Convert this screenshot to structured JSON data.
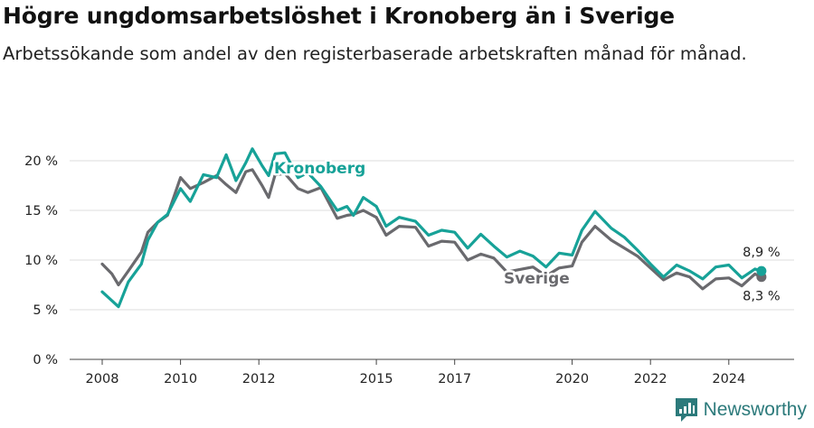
{
  "title": "Högre ungdomsarbetslöshet i Kronoberg än i Sverige",
  "subtitle": "Arbetssökande som andel av den registerbaserade arbetskraften månad för månad.",
  "brand": {
    "name": "Newsworthy",
    "logo_icon": "bar-chart-icon",
    "color": "#2c7a7b"
  },
  "chart_data": {
    "type": "line",
    "title": "Högre ungdomsarbetslöshet i Kronoberg än i Sverige",
    "subtitle": "Arbetssökande som andel av den registerbaserade arbetskraften månad för månad.",
    "xlabel": "",
    "ylabel": "",
    "x_range": [
      "2008-01",
      "2025-01"
    ],
    "ylim": [
      0,
      22
    ],
    "y_ticks": [
      0,
      5,
      10,
      15,
      20
    ],
    "y_tick_labels": [
      "0 %",
      "5 %",
      "10 %",
      "15 %",
      "20 %"
    ],
    "x_tick_labels": [
      "2008",
      "2010",
      "2012",
      "2015",
      "2017",
      "2020",
      "2022",
      "2024"
    ],
    "x_ticks": [
      "2008-01",
      "2010-01",
      "2012-01",
      "2015-01",
      "2017-01",
      "2020-01",
      "2022-01",
      "2024-01"
    ],
    "grid": "horizontal",
    "series": [
      {
        "name": "Kronoberg",
        "color": "#17a298",
        "end_label": "8,9 %",
        "points": [
          [
            "2008-01",
            6.8
          ],
          [
            "2008-04",
            5.9
          ],
          [
            "2008-06",
            5.3
          ],
          [
            "2008-09",
            7.8
          ],
          [
            "2009-01",
            9.6
          ],
          [
            "2009-03",
            12.0
          ],
          [
            "2009-06",
            13.8
          ],
          [
            "2009-09",
            14.6
          ],
          [
            "2010-01",
            17.2
          ],
          [
            "2010-04",
            15.9
          ],
          [
            "2010-08",
            18.6
          ],
          [
            "2010-12",
            18.3
          ],
          [
            "2011-03",
            20.6
          ],
          [
            "2011-06",
            18.0
          ],
          [
            "2011-09",
            19.8
          ],
          [
            "2011-11",
            21.2
          ],
          [
            "2012-02",
            19.5
          ],
          [
            "2012-04",
            18.5
          ],
          [
            "2012-06",
            20.7
          ],
          [
            "2012-09",
            20.8
          ],
          [
            "2013-01",
            18.3
          ],
          [
            "2013-04",
            18.8
          ],
          [
            "2013-08",
            17.4
          ],
          [
            "2014-01",
            15.0
          ],
          [
            "2014-04",
            15.4
          ],
          [
            "2014-06",
            14.5
          ],
          [
            "2014-09",
            16.3
          ],
          [
            "2015-01",
            15.4
          ],
          [
            "2015-04",
            13.4
          ],
          [
            "2015-08",
            14.3
          ],
          [
            "2016-01",
            13.9
          ],
          [
            "2016-05",
            12.5
          ],
          [
            "2016-09",
            13.0
          ],
          [
            "2017-01",
            12.8
          ],
          [
            "2017-05",
            11.2
          ],
          [
            "2017-09",
            12.6
          ],
          [
            "2018-01",
            11.4
          ],
          [
            "2018-05",
            10.3
          ],
          [
            "2018-09",
            10.9
          ],
          [
            "2019-01",
            10.4
          ],
          [
            "2019-05",
            9.3
          ],
          [
            "2019-09",
            10.7
          ],
          [
            "2020-01",
            10.5
          ],
          [
            "2020-04",
            13.0
          ],
          [
            "2020-08",
            14.9
          ],
          [
            "2021-01",
            13.2
          ],
          [
            "2021-05",
            12.3
          ],
          [
            "2021-09",
            11.0
          ],
          [
            "2022-01",
            9.6
          ],
          [
            "2022-05",
            8.3
          ],
          [
            "2022-09",
            9.5
          ],
          [
            "2023-01",
            8.9
          ],
          [
            "2023-05",
            8.1
          ],
          [
            "2023-09",
            9.3
          ],
          [
            "2024-01",
            9.5
          ],
          [
            "2024-05",
            8.2
          ],
          [
            "2024-09",
            9.1
          ],
          [
            "2024-11",
            8.9
          ]
        ]
      },
      {
        "name": "Sverige",
        "color": "#6a6a6e",
        "end_label": "8,3 %",
        "points": [
          [
            "2008-01",
            9.6
          ],
          [
            "2008-04",
            8.6
          ],
          [
            "2008-06",
            7.5
          ],
          [
            "2008-09",
            8.9
          ],
          [
            "2009-01",
            10.8
          ],
          [
            "2009-03",
            12.8
          ],
          [
            "2009-06",
            13.8
          ],
          [
            "2009-09",
            14.5
          ],
          [
            "2010-01",
            18.3
          ],
          [
            "2010-04",
            17.2
          ],
          [
            "2010-08",
            17.8
          ],
          [
            "2010-12",
            18.5
          ],
          [
            "2011-03",
            17.6
          ],
          [
            "2011-06",
            16.8
          ],
          [
            "2011-09",
            18.9
          ],
          [
            "2011-11",
            19.1
          ],
          [
            "2012-02",
            17.5
          ],
          [
            "2012-04",
            16.3
          ],
          [
            "2012-06",
            18.6
          ],
          [
            "2012-09",
            18.7
          ],
          [
            "2013-01",
            17.2
          ],
          [
            "2013-04",
            16.8
          ],
          [
            "2013-08",
            17.3
          ],
          [
            "2014-01",
            14.2
          ],
          [
            "2014-04",
            14.5
          ],
          [
            "2014-06",
            14.6
          ],
          [
            "2014-09",
            15.0
          ],
          [
            "2015-01",
            14.3
          ],
          [
            "2015-04",
            12.5
          ],
          [
            "2015-08",
            13.4
          ],
          [
            "2016-01",
            13.3
          ],
          [
            "2016-05",
            11.4
          ],
          [
            "2016-09",
            11.9
          ],
          [
            "2017-01",
            11.8
          ],
          [
            "2017-05",
            10.0
          ],
          [
            "2017-09",
            10.6
          ],
          [
            "2018-01",
            10.2
          ],
          [
            "2018-05",
            8.8
          ],
          [
            "2019-01",
            9.3
          ],
          [
            "2019-05",
            8.4
          ],
          [
            "2019-09",
            9.2
          ],
          [
            "2020-01",
            9.4
          ],
          [
            "2020-04",
            11.8
          ],
          [
            "2020-08",
            13.4
          ],
          [
            "2021-01",
            12.0
          ],
          [
            "2021-05",
            11.2
          ],
          [
            "2021-09",
            10.4
          ],
          [
            "2022-01",
            9.2
          ],
          [
            "2022-05",
            8.0
          ],
          [
            "2022-09",
            8.7
          ],
          [
            "2023-01",
            8.3
          ],
          [
            "2023-05",
            7.1
          ],
          [
            "2023-09",
            8.1
          ],
          [
            "2024-01",
            8.2
          ],
          [
            "2024-05",
            7.4
          ],
          [
            "2024-09",
            8.6
          ],
          [
            "2024-11",
            8.3
          ]
        ]
      }
    ]
  }
}
